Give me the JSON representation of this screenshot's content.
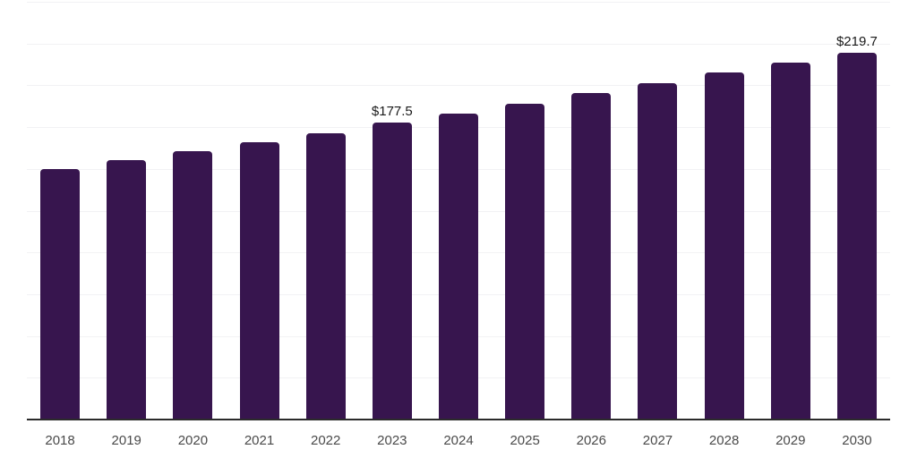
{
  "chart_data": {
    "type": "bar",
    "title": "",
    "xlabel": "",
    "ylabel": "",
    "categories": [
      "2018",
      "2019",
      "2020",
      "2021",
      "2022",
      "2023",
      "2024",
      "2025",
      "2026",
      "2027",
      "2028",
      "2029",
      "2030"
    ],
    "values": [
      150,
      155,
      160.5,
      166,
      171.5,
      177.5,
      183,
      189,
      195.5,
      201.5,
      207.5,
      213.5,
      219.7
    ],
    "data_labels": {
      "2023": "$177.5",
      "2030": "$219.7"
    },
    "ylim": [
      0,
      250
    ],
    "grid_step": 25,
    "grid": true,
    "legend": false,
    "colors": {
      "bar": "#37154e",
      "gridline": "#f2f2f4",
      "axis_line": "#2b2b2b",
      "tick_label": "#4a4a4a",
      "data_label": "#1a1a1a"
    }
  }
}
